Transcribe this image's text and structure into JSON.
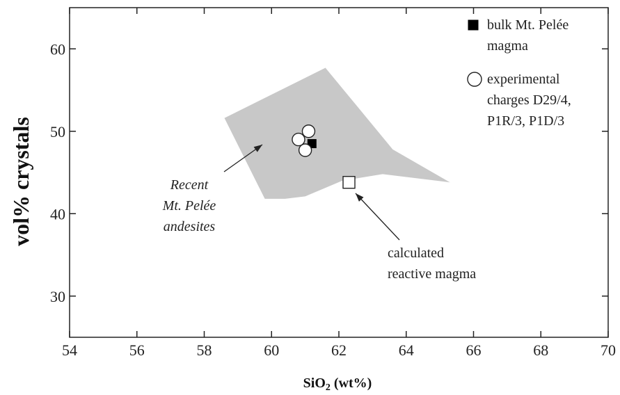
{
  "chart_data": {
    "type": "scatter",
    "xlabel_main": "SiO",
    "xlabel_sub": "2",
    "xlabel_unit": " (wt%)",
    "ylabel": "vol% crystals",
    "xlim": [
      54,
      70
    ],
    "ylim": [
      25,
      65
    ],
    "xticks": [
      "54",
      "56",
      "58",
      "60",
      "62",
      "64",
      "66",
      "68",
      "70"
    ],
    "yticks": [
      "30",
      "40",
      "50",
      "60"
    ],
    "grid": false,
    "region": {
      "label_lines": [
        "Recent",
        "Mt. Pelée",
        "andesites"
      ],
      "color": "#c8c8c8",
      "polygon": [
        [
          58.6,
          51.6
        ],
        [
          61.6,
          57.7
        ],
        [
          63.6,
          47.8
        ],
        [
          65.3,
          43.8
        ],
        [
          63.3,
          44.8
        ],
        [
          62.1,
          44.0
        ],
        [
          61.0,
          42.1
        ],
        [
          60.4,
          41.8
        ],
        [
          59.8,
          41.8
        ]
      ]
    },
    "series": [
      {
        "name_lines": [
          "bulk Mt. Pelée",
          "magma"
        ],
        "marker": "filled-square",
        "color": "#000000",
        "points": [
          [
            61.2,
            48.5
          ]
        ]
      },
      {
        "name_lines": [
          "experimental",
          "charges D29/4,",
          "P1R/3, P1D/3"
        ],
        "marker": "open-circle",
        "color": "#ffffff",
        "points": [
          [
            61.1,
            50.0
          ],
          [
            60.8,
            49.0
          ],
          [
            61.0,
            47.7
          ]
        ]
      },
      {
        "name_lines": [
          "calculated",
          "reactive magma"
        ],
        "marker": "open-square",
        "color": "#ffffff",
        "points": [
          [
            62.3,
            43.8
          ]
        ]
      }
    ],
    "legend_position": "top-right"
  }
}
